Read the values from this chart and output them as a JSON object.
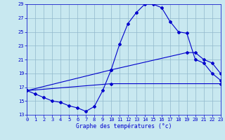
{
  "bg_color": "#c8e8f0",
  "line_color": "#0000cc",
  "grid_color": "#90b8cc",
  "xlabel": "Graphe des températures (°c)",
  "ylim": [
    13,
    29
  ],
  "xlim": [
    0,
    23
  ],
  "yticks": [
    13,
    15,
    17,
    19,
    21,
    23,
    25,
    27,
    29
  ],
  "xticks": [
    0,
    1,
    2,
    3,
    4,
    5,
    6,
    7,
    8,
    9,
    10,
    11,
    12,
    13,
    14,
    15,
    16,
    17,
    18,
    19,
    20,
    21,
    22,
    23
  ],
  "series": [
    {
      "x": [
        0,
        1,
        2,
        3,
        4,
        5,
        6,
        7,
        8,
        9,
        10,
        11,
        12,
        13,
        14,
        15,
        16,
        17,
        18,
        19,
        20,
        21,
        22,
        23
      ],
      "y": [
        16.5,
        16.0,
        15.5,
        15.0,
        14.8,
        14.3,
        14.0,
        13.5,
        14.2,
        16.5,
        19.5,
        23.2,
        26.2,
        27.8,
        29.0,
        29.0,
        28.5,
        26.5,
        25.0,
        24.8,
        21.0,
        20.5,
        19.0,
        18.0
      ]
    },
    {
      "x": [
        0,
        10,
        19,
        20,
        21,
        22,
        23
      ],
      "y": [
        16.5,
        19.5,
        22.0,
        22.0,
        21.0,
        20.5,
        19.0
      ]
    },
    {
      "x": [
        0,
        10,
        23
      ],
      "y": [
        16.5,
        17.5,
        17.5
      ]
    }
  ]
}
